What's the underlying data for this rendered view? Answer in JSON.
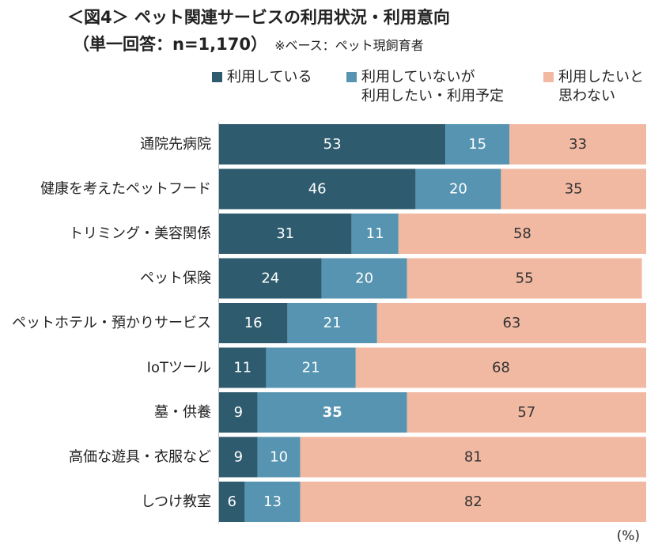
{
  "title": {
    "line1": "＜図4＞ ペット関連サービスの利用状況・利用意向",
    "line2": "（単一回答：n=1,170）",
    "base_note": "※ベース：ペット現飼育者"
  },
  "unit_label": "(%)",
  "colors": {
    "using": "#2e5b6e",
    "not_using_want": "#5694b1",
    "not_want": "#f2b9a2"
  },
  "legend": [
    {
      "label_line1": "利用している",
      "label_line2": ""
    },
    {
      "label_line1": "利用していないが",
      "label_line2": "利用したい・利用予定"
    },
    {
      "label_line1": "利用したいと",
      "label_line2": "思わない"
    }
  ],
  "chart_data": {
    "type": "bar",
    "orientation": "horizontal-stacked-100",
    "categories": [
      "通院先病院",
      "健康を考えたペットフード",
      "トリミング・美容関係",
      "ペット保険",
      "ペットホテル・預かりサービス",
      "IoTツール",
      "墓・供養",
      "高価な遊具・衣服など",
      "しつけ教室"
    ],
    "series": [
      {
        "name": "利用している",
        "values": [
          53,
          46,
          31,
          24,
          16,
          11,
          9,
          9,
          6
        ]
      },
      {
        "name": "利用していないが利用したい・利用予定",
        "values": [
          15,
          20,
          11,
          20,
          21,
          21,
          35,
          10,
          13
        ]
      },
      {
        "name": "利用したいと思わない",
        "values": [
          33,
          35,
          58,
          55,
          63,
          68,
          57,
          81,
          82
        ]
      }
    ],
    "highlight": {
      "category": "墓・供養",
      "series": "利用していないが利用したい・利用予定"
    },
    "xlim": [
      0,
      100
    ],
    "xlabel": "",
    "ylabel": ""
  }
}
